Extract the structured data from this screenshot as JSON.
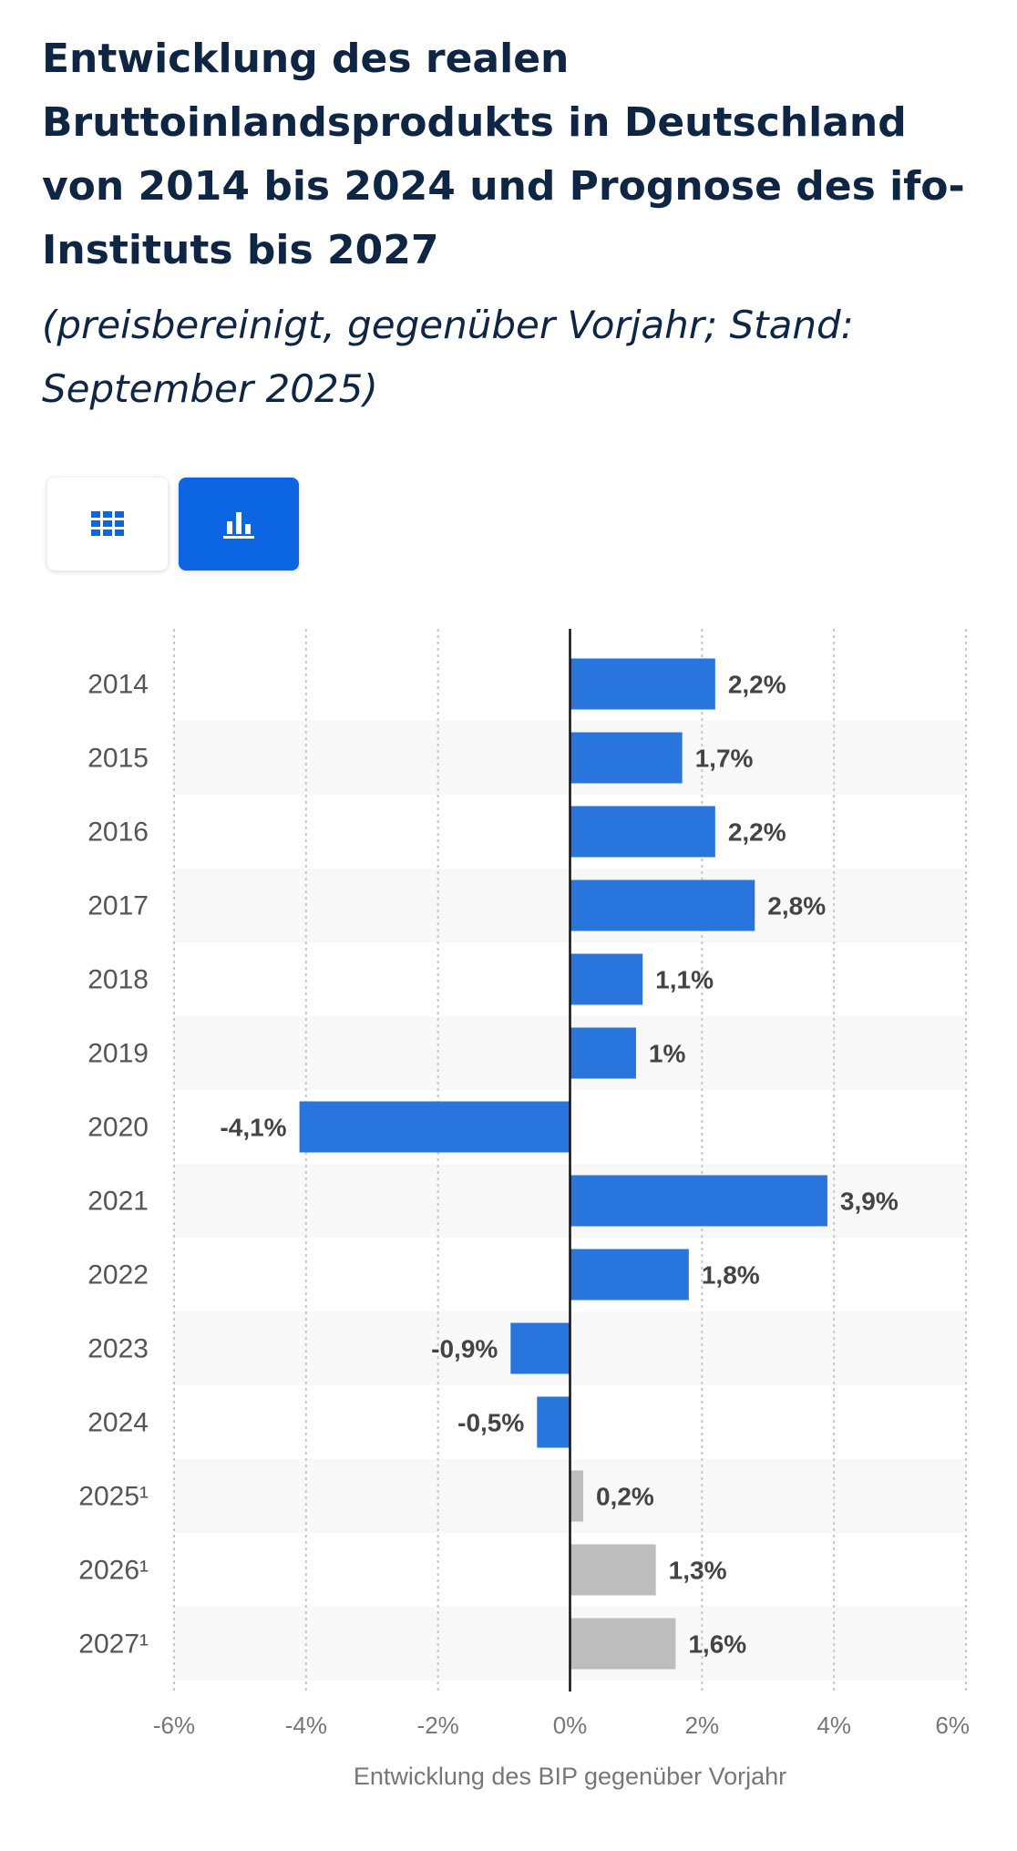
{
  "header": {
    "title": "Entwicklung des realen Bruttoinlandsprodukts in Deutschland von 2014 bis 2024 und Prognose des ifo-Instituts bis 2027",
    "subtitle": "(preisbereinigt, gegenüber Vorjahr; Stand: September 2025)"
  },
  "view_toggle": {
    "table_icon": "grid-icon",
    "chart_icon": "bar-chart-icon",
    "active": "chart"
  },
  "colors": {
    "actual": "#2775dd",
    "forecast": "#bdbdbd",
    "toggle_active": "#0c66e4",
    "title": "#0f2544"
  },
  "chart_data": {
    "type": "bar",
    "orientation": "horizontal",
    "categories": [
      "2014",
      "2015",
      "2016",
      "2017",
      "2018",
      "2019",
      "2020",
      "2021",
      "2022",
      "2023",
      "2024",
      "2025¹",
      "2026¹",
      "2027¹"
    ],
    "values": [
      2.2,
      1.7,
      2.2,
      2.8,
      1.1,
      1.0,
      -4.1,
      3.9,
      1.8,
      -0.9,
      -0.5,
      0.2,
      1.3,
      1.6
    ],
    "value_labels": [
      "2,2%",
      "1,7%",
      "2,2%",
      "2,8%",
      "1,1%",
      "1%",
      "-4,1%",
      "3,9%",
      "1,8%",
      "-0,9%",
      "-0,5%",
      "0,2%",
      "1,3%",
      "1,6%"
    ],
    "forecast": [
      false,
      false,
      false,
      false,
      false,
      false,
      false,
      false,
      false,
      false,
      false,
      true,
      true,
      true
    ],
    "xlim": [
      -6,
      6
    ],
    "ticks": [
      -6,
      -4,
      -2,
      0,
      2,
      4,
      6
    ],
    "tick_labels": [
      "-6%",
      "-4%",
      "-2%",
      "0%",
      "2%",
      "4%",
      "6%"
    ],
    "xlabel": "Entwicklung des BIP gegenüber Vorjahr",
    "ylabel": "",
    "grid": true
  }
}
